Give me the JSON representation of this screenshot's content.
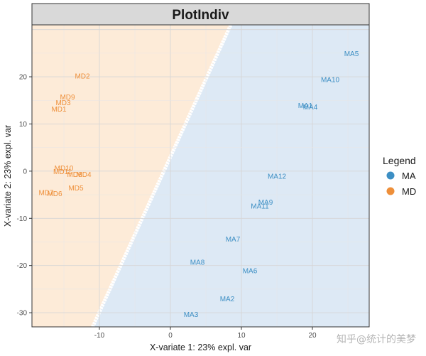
{
  "chart_data": {
    "type": "scatter",
    "title": "PlotIndiv",
    "xlabel": "X-variate 1: 23% expl. var",
    "ylabel": "X-variate 2: 23% expl. var",
    "xlim": [
      -19.5,
      28
    ],
    "ylim": [
      -33,
      31
    ],
    "x_ticks": [
      -10,
      0,
      10,
      20
    ],
    "y_ticks": [
      -30,
      -20,
      -10,
      0,
      10,
      20
    ],
    "grid": true,
    "legend": {
      "title": "Legend",
      "position": "right",
      "entries": [
        {
          "label": "MA",
          "color": "#3d8fc4"
        },
        {
          "label": "MD",
          "color": "#ee8f3a"
        }
      ]
    },
    "regions": [
      {
        "group": "MD",
        "fill": "#fdebd8"
      },
      {
        "group": "MA",
        "fill": "#dde9f5"
      }
    ],
    "boundary_line": [
      [
        -10.5,
        -31.5
      ],
      [
        8.5,
        31
      ]
    ],
    "series": [
      {
        "name": "MA",
        "color": "#3d8fc4",
        "points": [
          {
            "label": "MA5",
            "x": 25.5,
            "y": 25
          },
          {
            "label": "MA10",
            "x": 22.5,
            "y": 19.5
          },
          {
            "label": "MA1",
            "x": 19,
            "y": 14
          },
          {
            "label": "MA4",
            "x": 19.7,
            "y": 13.7
          },
          {
            "label": "MA12",
            "x": 15,
            "y": -1
          },
          {
            "label": "MA9",
            "x": 13.4,
            "y": -6.5
          },
          {
            "label": "MA11",
            "x": 12.6,
            "y": -7.3
          },
          {
            "label": "MA7",
            "x": 8.8,
            "y": -14.3
          },
          {
            "label": "MA8",
            "x": 3.8,
            "y": -19.2
          },
          {
            "label": "MA6",
            "x": 11.2,
            "y": -21
          },
          {
            "label": "MA2",
            "x": 8,
            "y": -27
          },
          {
            "label": "MA3",
            "x": 2.9,
            "y": -30.3
          }
        ]
      },
      {
        "name": "MD",
        "color": "#ee8f3a",
        "points": [
          {
            "label": "MD2",
            "x": -12.4,
            "y": 20.2
          },
          {
            "label": "MD9",
            "x": -14.5,
            "y": 15.8
          },
          {
            "label": "MD3",
            "x": -15.1,
            "y": 14.6
          },
          {
            "label": "MD1",
            "x": -15.7,
            "y": 13.2
          },
          {
            "label": "MD10",
            "x": -15,
            "y": 0.7
          },
          {
            "label": "MD11",
            "x": -15.2,
            "y": 0
          },
          {
            "label": "MD8",
            "x": -13.5,
            "y": -0.6
          },
          {
            "label": "MD4",
            "x": -12.2,
            "y": -0.6
          },
          {
            "label": "MD5",
            "x": -13.3,
            "y": -3.5
          },
          {
            "label": "MD7",
            "x": -17.5,
            "y": -4.5
          },
          {
            "label": "MD6",
            "x": -16.3,
            "y": -4.7
          }
        ]
      }
    ]
  },
  "watermark": "知乎@统计的美梦"
}
